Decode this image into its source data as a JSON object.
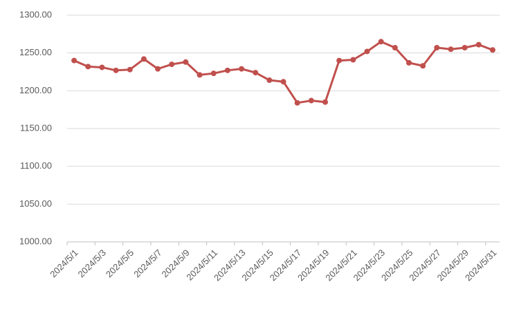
{
  "chart_data": {
    "type": "line",
    "categories": [
      "2024/5/1",
      null,
      "2024/5/3",
      null,
      "2024/5/5",
      null,
      "2024/5/7",
      null,
      "2024/5/9",
      null,
      "2024/5/11",
      null,
      "2024/5/13",
      null,
      "2024/5/15",
      null,
      "2024/5/17",
      null,
      "2024/5/19",
      null,
      "2024/5/21",
      null,
      "2024/5/23",
      null,
      "2024/5/25",
      null,
      "2024/5/27",
      null,
      "2024/5/29",
      null,
      "2024/5/31"
    ],
    "values": [
      1240,
      1232,
      1231,
      1227,
      1228,
      1242,
      1229,
      1235,
      1238,
      1221,
      1223,
      1227,
      1229,
      1224,
      1214,
      1212,
      1184,
      1187,
      1185,
      1240,
      1241,
      1252,
      1265,
      1257,
      1237,
      1233,
      1257,
      1255,
      1257,
      1261,
      1254
    ],
    "color": "#c0504d",
    "ylim": [
      1000,
      1300
    ],
    "yticks": [
      {
        "value": 1000,
        "label": "1000.00"
      },
      {
        "value": 1050,
        "label": "1050.00"
      },
      {
        "value": 1100,
        "label": "1100.00"
      },
      {
        "value": 1150,
        "label": "1150.00"
      },
      {
        "value": 1200,
        "label": "1200.00"
      },
      {
        "value": 1250,
        "label": "1250.00"
      },
      {
        "value": 1300,
        "label": "1300.00"
      }
    ],
    "grid": true
  }
}
